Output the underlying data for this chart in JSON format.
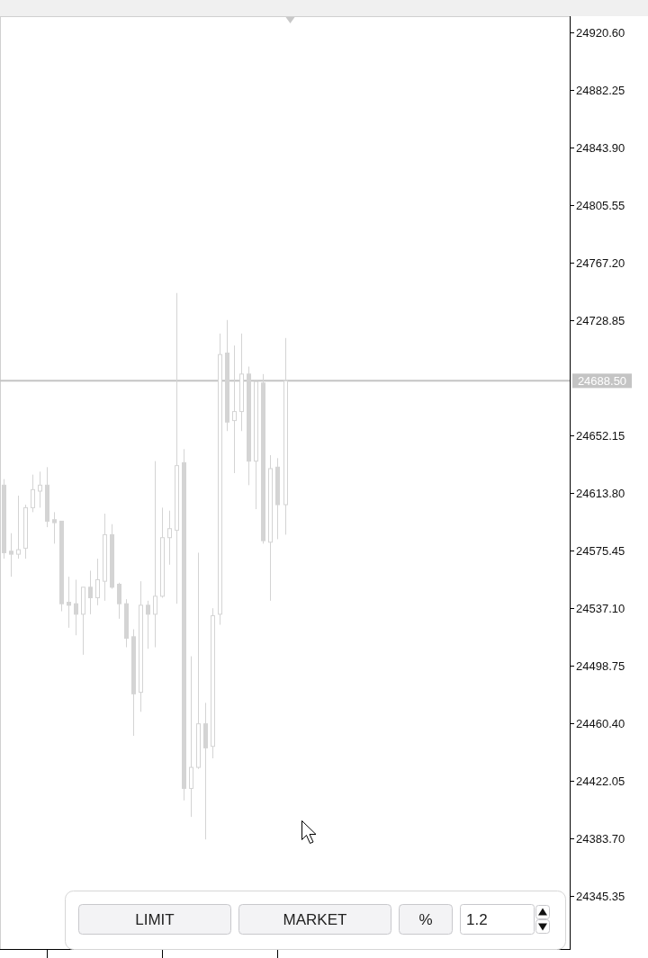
{
  "chart_data": {
    "type": "candlestick",
    "categories": [
      null,
      null,
      null,
      null,
      null,
      null,
      null,
      null,
      null,
      null,
      null,
      null,
      null,
      null,
      null,
      null,
      null,
      null,
      null,
      null,
      null,
      null,
      null,
      null,
      null,
      null,
      null,
      null,
      null,
      null,
      null,
      null,
      null,
      null,
      null,
      null,
      null,
      null,
      null,
      null,
      null,
      null,
      null,
      null,
      null,
      null,
      null,
      null,
      null,
      null,
      null,
      null,
      null,
      null,
      null,
      null,
      null,
      null,
      null,
      null,
      null,
      null,
      null,
      null,
      null,
      null,
      null,
      null,
      null,
      null,
      null,
      null,
      null,
      null,
      null,
      null,
      null,
      null,
      null
    ],
    "ohlc": [
      [
        24619,
        24623,
        24570,
        24574
      ],
      [
        24575,
        24587,
        24558,
        24573
      ],
      [
        24573,
        24612,
        24570,
        24576
      ],
      [
        24577,
        24606,
        24570,
        24604
      ],
      [
        24604,
        24626,
        24601,
        24616
      ],
      [
        24615,
        24628,
        24604,
        24619
      ],
      [
        24619,
        24631,
        24591,
        24595
      ],
      [
        24596,
        24601,
        24580,
        24594
      ],
      [
        24595,
        24595,
        24535,
        24540
      ],
      [
        24541,
        24558,
        24524,
        24539
      ],
      [
        24540,
        24556,
        24519,
        24533
      ],
      [
        24533,
        24551,
        24506,
        24551
      ],
      [
        24551,
        24562,
        24533,
        24544
      ],
      [
        24544,
        24570,
        24539,
        24556
      ],
      [
        24555,
        24600,
        24542,
        24586
      ],
      [
        24586,
        24593,
        24550,
        24551
      ],
      [
        24553,
        24554,
        24530,
        24540
      ],
      [
        24540,
        24543,
        24511,
        24517
      ],
      [
        24518,
        24523,
        24452,
        24480
      ],
      [
        24481,
        24555,
        24468,
        24539
      ],
      [
        24539,
        24542,
        24510,
        24533
      ],
      [
        24533,
        24635,
        24511,
        24545
      ],
      [
        24545,
        24604,
        24544,
        24584
      ],
      [
        24584,
        24602,
        24566,
        24590
      ],
      [
        24589,
        24747,
        24540,
        24632
      ],
      [
        24634,
        24643,
        24409,
        24417
      ],
      [
        24417,
        24505,
        24398,
        24431
      ],
      [
        24431,
        24574,
        24430,
        24460
      ],
      [
        24460,
        24474,
        24383,
        24444
      ],
      [
        24445,
        24537,
        24437,
        24532
      ],
      [
        24533,
        24720,
        24526,
        24706
      ],
      [
        24707,
        24729,
        24655,
        24661
      ],
      [
        24662,
        24712,
        24627,
        24668
      ],
      [
        24668,
        24720,
        24655,
        24693
      ],
      [
        24693,
        24698,
        24619,
        24635
      ],
      [
        24635,
        24688,
        24603,
        24688
      ],
      [
        24687,
        24693,
        24580,
        24582
      ],
      [
        24581,
        24639,
        24542,
        24630
      ],
      [
        24631,
        24637,
        24583,
        24606
      ],
      [
        24606,
        24717,
        24586,
        24688.5
      ],
      null,
      null,
      null,
      null,
      null,
      null,
      null,
      null,
      null,
      null,
      null,
      null,
      null,
      null,
      null,
      null,
      null,
      null,
      null,
      null,
      null,
      null,
      null,
      null,
      null,
      null,
      null,
      null,
      null,
      null,
      null,
      null,
      null,
      null,
      null,
      null,
      null,
      null,
      null
    ],
    "color": "#d4d4d4",
    "ylim": [
      24310.0,
      24931.4
    ],
    "yticks": [
      {
        "value": 24920.6,
        "label": "24920.60"
      },
      24882.25,
      {
        "value": 24843.9,
        "label": "24843.90"
      },
      24805.55,
      {
        "value": 24767.2,
        "label": "24767.20"
      },
      24728.85,
      24652.15,
      {
        "value": 24613.8,
        "label": "24613.80"
      },
      24575.45,
      {
        "value": 24537.1,
        "label": "24537.10"
      },
      24498.75,
      {
        "value": 24460.4,
        "label": "24460.40"
      },
      24422.05,
      {
        "value": 24383.7,
        "label": "24383.70"
      },
      24345.35
    ],
    "tick_labels": "y",
    "ref_lines": [
      {
        "axis": "y",
        "value": 24688.5,
        "label": "24688.50",
        "color": "#c4c4c4"
      }
    ],
    "annotations": [
      "LIMIT",
      "MARKET",
      "%",
      "1.2"
    ]
  }
}
